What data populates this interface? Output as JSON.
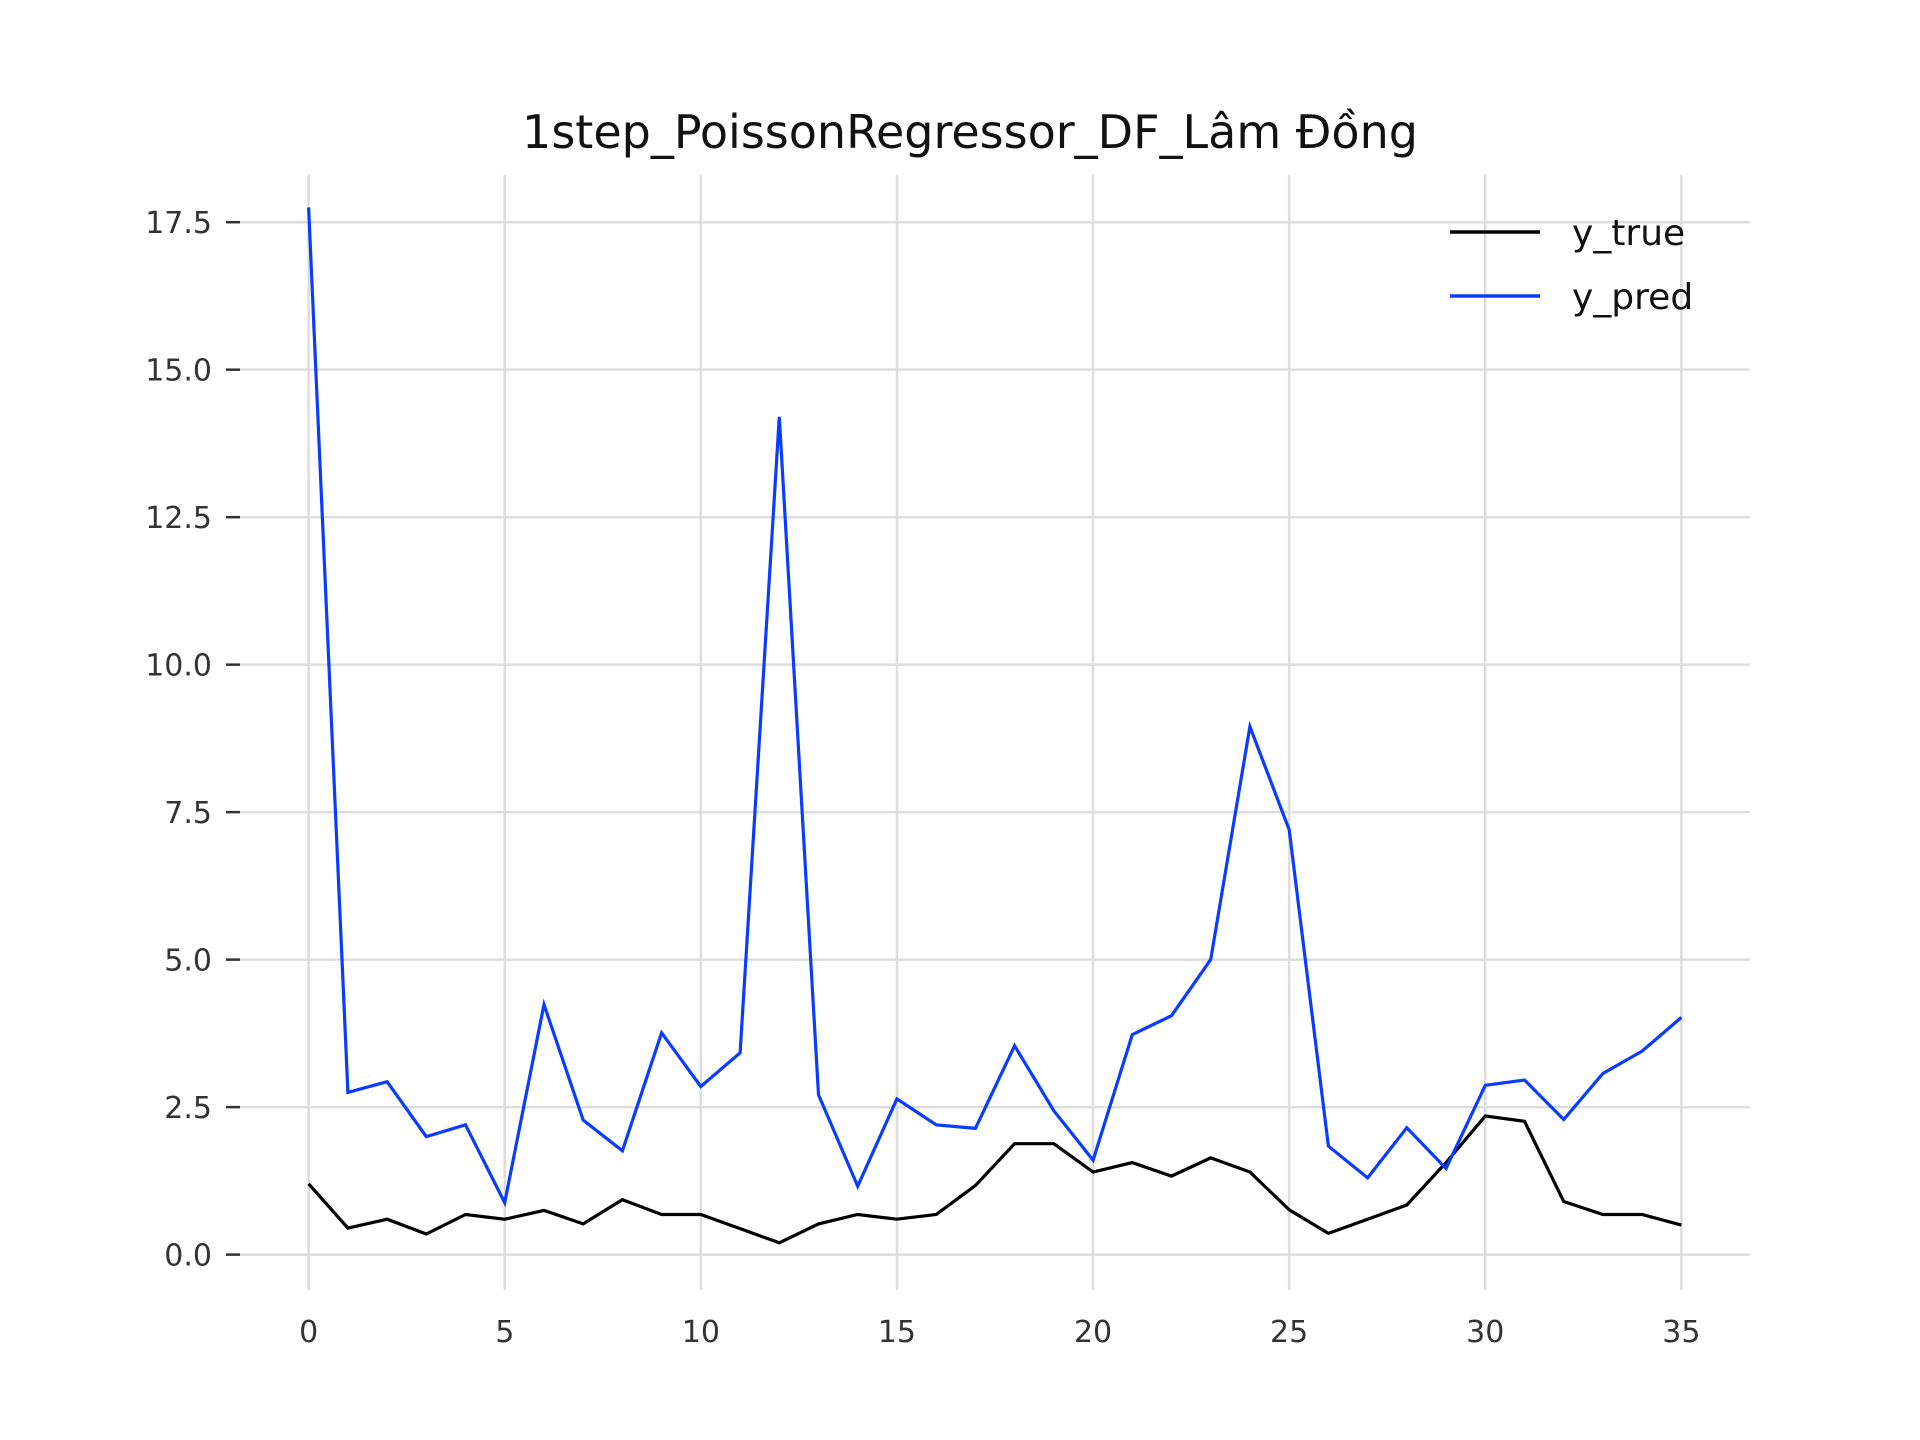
{
  "chart_data": {
    "type": "line",
    "title": "1step_PoissonRegressor_DF_Lâm Đồng",
    "xlabel": "",
    "ylabel": "",
    "xlim": [
      -1.75,
      36.75
    ],
    "ylim": [
      -0.6,
      18.3
    ],
    "grid": true,
    "legend_position": "top-right",
    "x_ticks": [
      0,
      5,
      10,
      15,
      20,
      25,
      30,
      35
    ],
    "x_tick_labels": [
      "0",
      "5",
      "10",
      "15",
      "20",
      "25",
      "30",
      "35"
    ],
    "y_ticks": [
      0.0,
      2.5,
      5.0,
      7.5,
      10.0,
      12.5,
      15.0,
      17.5
    ],
    "y_tick_labels": [
      "0.0",
      "2.5",
      "5.0",
      "7.5",
      "10.0",
      "12.5",
      "15.0",
      "17.5"
    ],
    "x": [
      0,
      1,
      2,
      3,
      4,
      5,
      6,
      7,
      8,
      9,
      10,
      11,
      12,
      13,
      14,
      15,
      16,
      17,
      18,
      19,
      20,
      21,
      22,
      23,
      24,
      25,
      26,
      27,
      28,
      29,
      30,
      31,
      32,
      33,
      34,
      35
    ],
    "series": [
      {
        "name": "y_true",
        "color": "#000000",
        "values": [
          1.2,
          0.45,
          0.6,
          0.35,
          0.68,
          0.6,
          0.75,
          0.52,
          0.93,
          0.68,
          0.68,
          0.44,
          0.2,
          0.52,
          0.68,
          0.6,
          0.68,
          1.17,
          1.88,
          1.88,
          1.4,
          1.56,
          1.33,
          1.64,
          1.4,
          0.76,
          0.36,
          0.6,
          0.84,
          1.56,
          2.35,
          2.26,
          0.9,
          0.68,
          0.68,
          0.5
        ]
      },
      {
        "name": "y_pred",
        "color": "#0a3cff",
        "values": [
          17.75,
          2.75,
          2.93,
          2.0,
          2.2,
          0.88,
          4.24,
          2.28,
          1.76,
          3.76,
          2.85,
          3.42,
          14.2,
          2.71,
          1.16,
          2.64,
          2.2,
          2.14,
          3.54,
          2.44,
          1.6,
          3.73,
          4.05,
          5.0,
          8.95,
          7.2,
          1.84,
          1.3,
          2.15,
          1.46,
          2.87,
          2.96,
          2.29,
          3.07,
          3.45,
          4.02
        ]
      }
    ]
  }
}
